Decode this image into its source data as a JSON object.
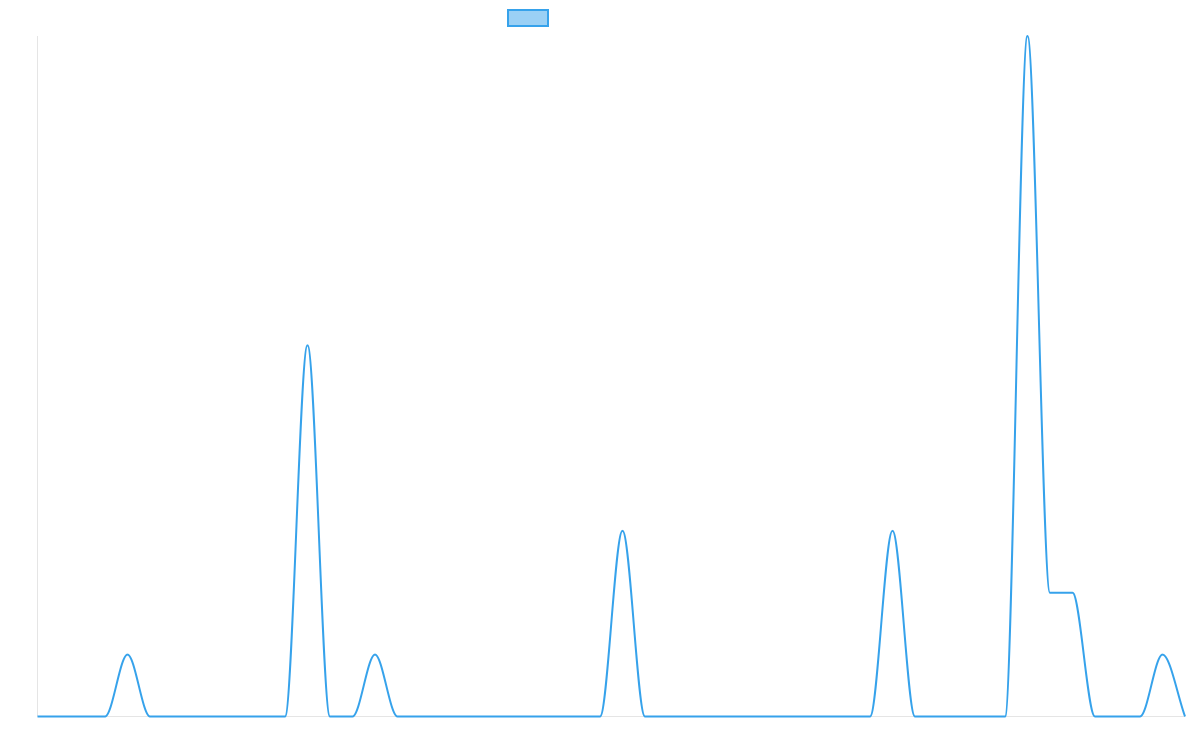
{
  "chart_data": {
    "type": "line",
    "title": "",
    "xlabel": "",
    "ylabel": "",
    "grid": false,
    "legend": {
      "position": "top-center",
      "entries": [
        ""
      ]
    },
    "colors": {
      "line": "#36a2eb",
      "legend_fill": "#9ad0f5",
      "axis": "#e5e5e5"
    },
    "x_range": [
      0,
      51
    ],
    "ylim": [
      0,
      11
    ],
    "series": [
      {
        "name": "",
        "points": [
          [
            0,
            0
          ],
          [
            3,
            0
          ],
          [
            4,
            1
          ],
          [
            5,
            0
          ],
          [
            11,
            0
          ],
          [
            12,
            6
          ],
          [
            13,
            0
          ],
          [
            14,
            0
          ],
          [
            15,
            1
          ],
          [
            16,
            0
          ],
          [
            25,
            0
          ],
          [
            26,
            3
          ],
          [
            27,
            0
          ],
          [
            37,
            0
          ],
          [
            38,
            3
          ],
          [
            39,
            0
          ],
          [
            43,
            0
          ],
          [
            44,
            11
          ],
          [
            45,
            2
          ],
          [
            46,
            2
          ],
          [
            47,
            0
          ],
          [
            49,
            0
          ],
          [
            50,
            1
          ],
          [
            51,
            0
          ]
        ]
      }
    ]
  }
}
